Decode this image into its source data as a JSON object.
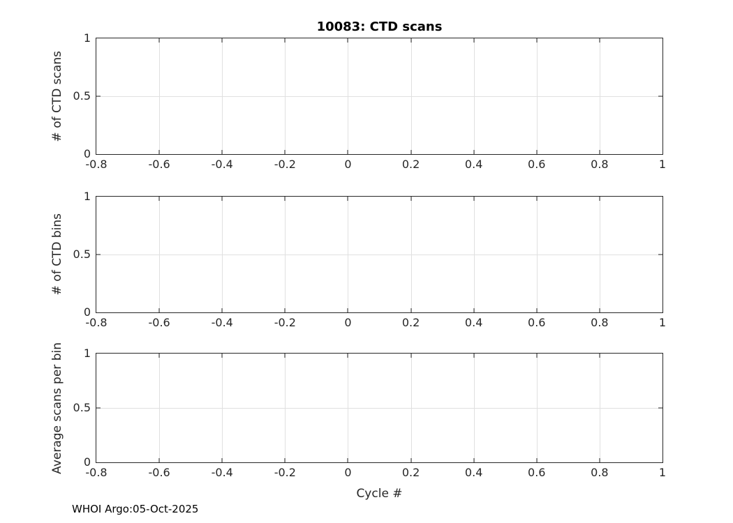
{
  "figure": {
    "title": "10083: CTD scans",
    "xlabel": "Cycle #",
    "footer": "WHOI Argo:05-Oct-2025",
    "bg": "#ffffff",
    "axis_color": "#262626",
    "grid_color": "#e0e0e0",
    "text_color": "#262626"
  },
  "chart_data": [
    {
      "type": "line",
      "title": "10083: CTD scans",
      "ylabel": "# of CTD scans",
      "xlabel": "",
      "xlim": [
        -0.8,
        1
      ],
      "ylim": [
        0,
        1
      ],
      "xticks": [
        -0.8,
        -0.6,
        -0.4,
        -0.2,
        0,
        0.2,
        0.4,
        0.6,
        0.8,
        1
      ],
      "yticks": [
        0,
        0.5,
        1
      ],
      "xtick_labels": [
        "-0.8",
        "-0.6",
        "-0.4",
        "-0.2",
        "0",
        "0.2",
        "0.4",
        "0.6",
        "0.8",
        "1"
      ],
      "ytick_labels": [
        "0",
        "0.5",
        "1"
      ],
      "grid": true,
      "legend": null,
      "series": []
    },
    {
      "type": "line",
      "title": "",
      "ylabel": "# of CTD bins",
      "xlabel": "",
      "xlim": [
        -0.8,
        1
      ],
      "ylim": [
        0,
        1
      ],
      "xticks": [
        -0.8,
        -0.6,
        -0.4,
        -0.2,
        0,
        0.2,
        0.4,
        0.6,
        0.8,
        1
      ],
      "yticks": [
        0,
        0.5,
        1
      ],
      "xtick_labels": [
        "-0.8",
        "-0.6",
        "-0.4",
        "-0.2",
        "0",
        "0.2",
        "0.4",
        "0.6",
        "0.8",
        "1"
      ],
      "ytick_labels": [
        "0",
        "0.5",
        "1"
      ],
      "grid": true,
      "legend": null,
      "series": []
    },
    {
      "type": "line",
      "title": "",
      "ylabel": "Average scans per bin",
      "xlabel": "Cycle #",
      "xlim": [
        -0.8,
        1
      ],
      "ylim": [
        0,
        1
      ],
      "xticks": [
        -0.8,
        -0.6,
        -0.4,
        -0.2,
        0,
        0.2,
        0.4,
        0.6,
        0.8,
        1
      ],
      "yticks": [
        0,
        0.5,
        1
      ],
      "xtick_labels": [
        "-0.8",
        "-0.6",
        "-0.4",
        "-0.2",
        "0",
        "0.2",
        "0.4",
        "0.6",
        "0.8",
        "1"
      ],
      "ytick_labels": [
        "0",
        "0.5",
        "1"
      ],
      "grid": true,
      "legend": null,
      "series": []
    }
  ]
}
